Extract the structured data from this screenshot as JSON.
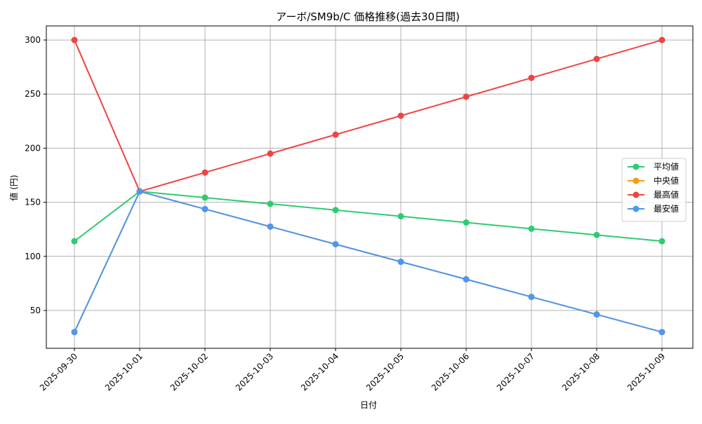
{
  "chart_data": {
    "type": "line",
    "title": "アーボ/SM9b/C 価格推移(過去30日間)",
    "xlabel": "日付",
    "ylabel": "値 (円)",
    "categories": [
      "2025-09-30",
      "2025-10-01",
      "2025-10-02",
      "2025-10-03",
      "2025-10-04",
      "2025-10-05",
      "2025-10-06",
      "2025-10-07",
      "2025-10-08",
      "2025-10-09"
    ],
    "ylim": [
      15,
      313
    ],
    "yticks": [
      50,
      100,
      150,
      200,
      250,
      300
    ],
    "grid": true,
    "legend_position": "right",
    "series": [
      {
        "name": "平均値",
        "color": "#2ecc71",
        "values": [
          114,
          160,
          154.3,
          148.5,
          142.8,
          137.0,
          131.3,
          125.5,
          119.8,
          114
        ]
      },
      {
        "name": "中央値",
        "color": "#f39c12",
        "values": [
          30,
          160,
          143.7,
          127.5,
          111.2,
          95.0,
          78.8,
          62.5,
          46.3,
          30
        ]
      },
      {
        "name": "最高値",
        "color": "#ef4444",
        "values": [
          300,
          160,
          177.5,
          195.0,
          212.5,
          230.0,
          247.5,
          265.0,
          282.5,
          300
        ]
      },
      {
        "name": "最安値",
        "color": "#4e96f0",
        "values": [
          30,
          160,
          143.7,
          127.5,
          111.2,
          95.0,
          78.8,
          62.5,
          46.3,
          30
        ]
      }
    ]
  }
}
